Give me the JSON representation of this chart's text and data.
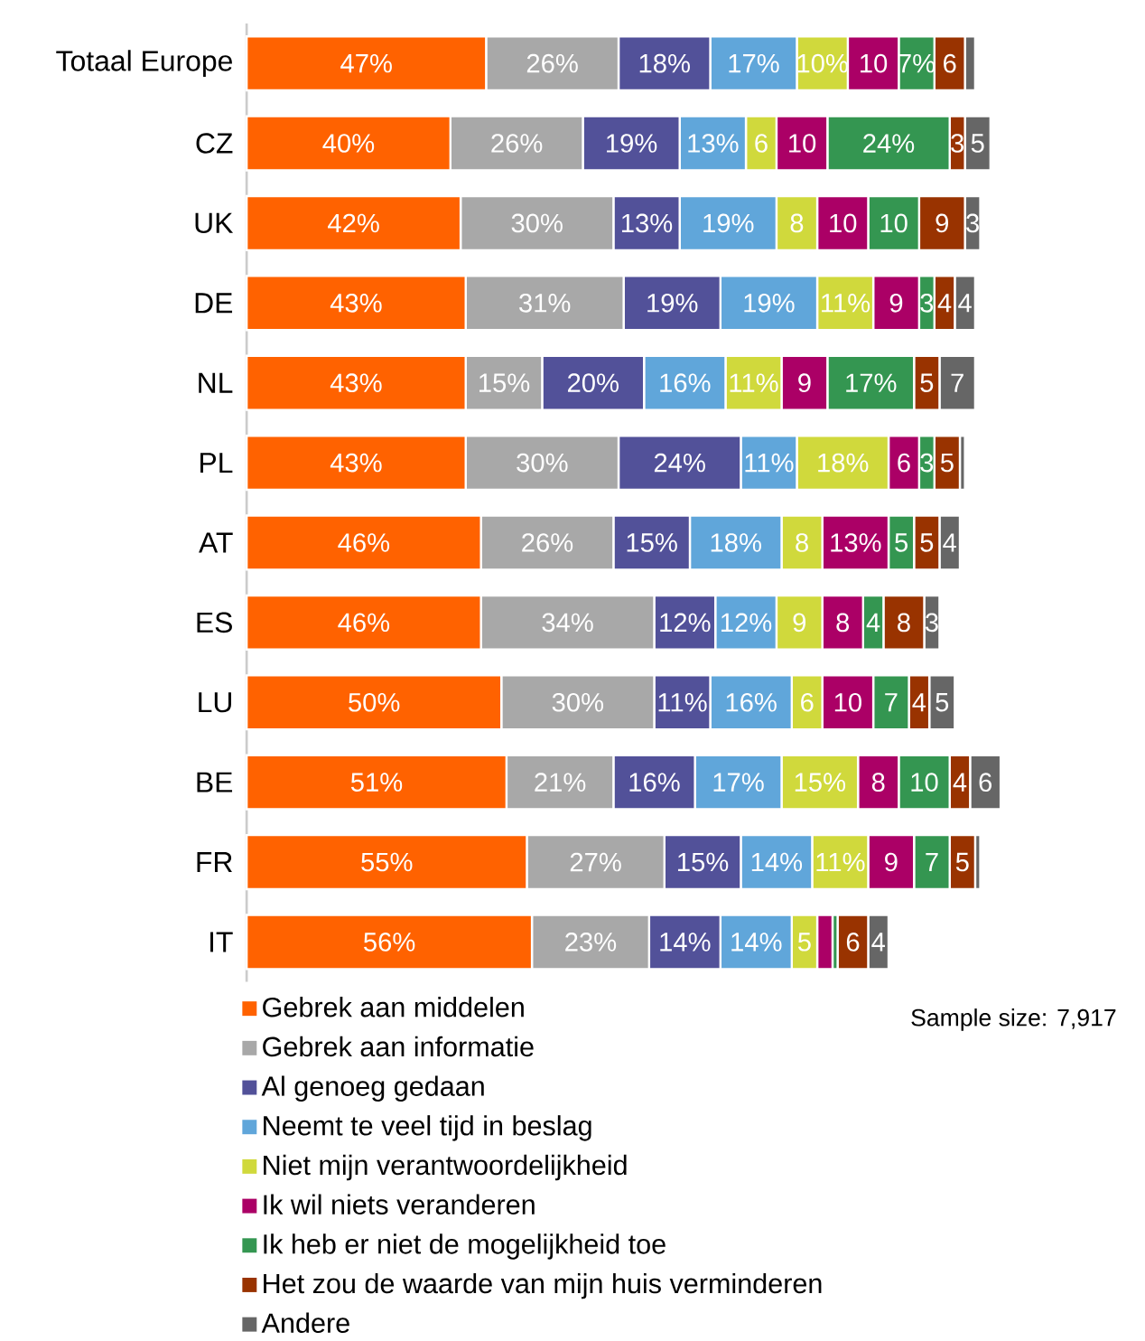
{
  "chart_data": {
    "type": "bar",
    "orientation": "horizontal",
    "stacked": true,
    "legend": "bottom",
    "categories": [
      "Totaal Europe",
      "CZ",
      "UK",
      "DE",
      "NL",
      "PL",
      "AT",
      "ES",
      "LU",
      "BE",
      "FR",
      "IT"
    ],
    "series": [
      {
        "name": "Gebrek aan middelen",
        "color": "#ff6200",
        "values": [
          47,
          40,
          42,
          43,
          43,
          43,
          46,
          46,
          50,
          51,
          55,
          56
        ],
        "value_labels": [
          "47%",
          "40%",
          "42%",
          "43%",
          "43%",
          "43%",
          "46%",
          "46%",
          "50%",
          "51%",
          "55%",
          "56%"
        ]
      },
      {
        "name": "Gebrek aan informatie",
        "color": "#a8a8a8",
        "values": [
          26,
          26,
          30,
          31,
          15,
          30,
          26,
          34,
          30,
          21,
          27,
          23
        ],
        "value_labels": [
          "26%",
          "26%",
          "30%",
          "31%",
          "15%",
          "30%",
          "26%",
          "34%",
          "30%",
          "21%",
          "27%",
          "23%"
        ]
      },
      {
        "name": "Al genoeg gedaan",
        "color": "#525199",
        "values": [
          18,
          19,
          13,
          19,
          20,
          24,
          15,
          12,
          11,
          16,
          15,
          14
        ],
        "value_labels": [
          "18%",
          "19%",
          "13%",
          "19%",
          "20%",
          "24%",
          "15%",
          "12%",
          "11%",
          "16%",
          "15%",
          "14%"
        ]
      },
      {
        "name": "Neemt te veel tijd in beslag",
        "color": "#60a6da",
        "values": [
          17,
          13,
          19,
          19,
          16,
          11,
          18,
          12,
          16,
          17,
          14,
          14
        ],
        "value_labels": [
          "17%",
          "13%",
          "19%",
          "19%",
          "16%",
          "11%",
          "18%",
          "12%",
          "16%",
          "17%",
          "14%",
          "14%"
        ]
      },
      {
        "name": "Niet mijn verantwoordelijkheid",
        "color": "#d0d93c",
        "values": [
          10,
          6,
          8,
          11,
          11,
          18,
          8,
          9,
          6,
          15,
          11,
          5
        ],
        "value_labels": [
          "10%",
          "6",
          "8",
          "11%",
          "11%",
          "18%",
          "8",
          "9",
          "6",
          "15%",
          "11%",
          "5"
        ]
      },
      {
        "name": "Ik wil niets veranderen",
        "color": "#ab0066",
        "values": [
          10,
          10,
          10,
          9,
          9,
          6,
          13,
          8,
          10,
          8,
          9,
          3
        ],
        "value_labels": [
          "10",
          "10",
          "10",
          "9",
          "9",
          "6",
          "13%",
          "8",
          "10",
          "8",
          "9",
          null
        ]
      },
      {
        "name": "Ik heb er niet de mogelijkheid toe",
        "color": "#349651",
        "values": [
          7,
          24,
          10,
          3,
          17,
          3,
          5,
          4,
          7,
          10,
          7,
          1
        ],
        "value_labels": [
          "7%",
          "24%",
          "10",
          "3",
          "17%",
          "3",
          "5",
          "4",
          "7",
          "10",
          "7",
          null
        ]
      },
      {
        "name": "Het zou de waarde van mijn huis verminderen",
        "color": "#993300",
        "values": [
          6,
          3,
          9,
          4,
          5,
          5,
          5,
          8,
          4,
          4,
          5,
          6
        ],
        "value_labels": [
          "6",
          "3",
          "9",
          "4",
          "5",
          "5",
          "5",
          "8",
          "4",
          "4",
          "5",
          "6"
        ]
      },
      {
        "name": "Andere",
        "color": "#666666",
        "values": [
          2,
          5,
          3,
          4,
          7,
          1,
          4,
          3,
          5,
          6,
          1,
          4
        ],
        "value_labels": [
          null,
          "5",
          "3",
          "4",
          "7",
          null,
          "4",
          "3",
          "5",
          "6",
          null,
          "4"
        ]
      }
    ],
    "annotations": [
      "Sample size: 7,917"
    ]
  }
}
